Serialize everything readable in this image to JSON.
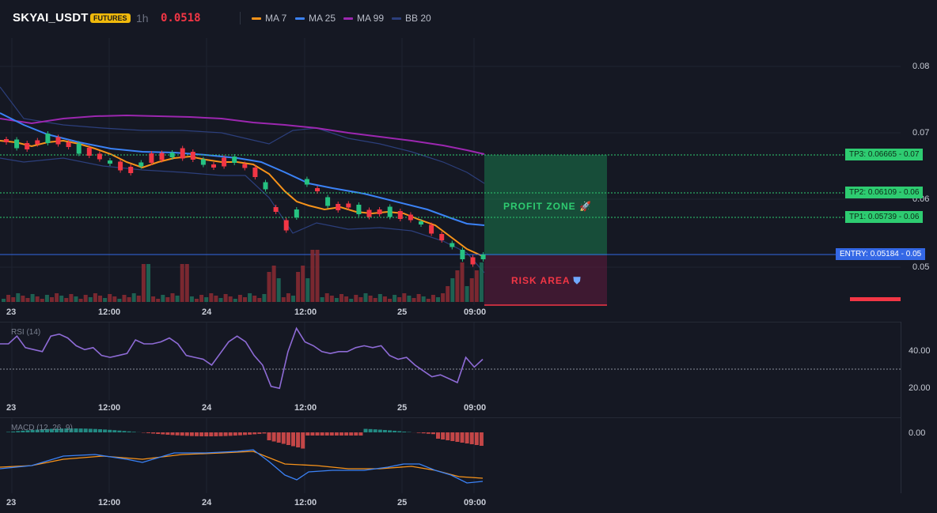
{
  "header": {
    "symbol": "SKYAI_USDT",
    "badge": "FUTURES",
    "timeframe": "1h",
    "last_price": "0.0518",
    "legend": [
      {
        "label": "MA 7",
        "color": "#f7931a"
      },
      {
        "label": "MA 25",
        "color": "#3b82f6"
      },
      {
        "label": "MA 99",
        "color": "#9c27b0"
      },
      {
        "label": "BB 20",
        "color": "#2c3f7c"
      }
    ]
  },
  "price_axis": {
    "ticks": [
      "0.08",
      "0.07",
      "0.06",
      "0.05"
    ]
  },
  "levels": {
    "tp3": "TP3: 0.06665",
    "tp3_axis": "0.07",
    "tp2": "TP2: 0.06109",
    "tp2_axis": "0.06",
    "tp1": "TP1: 0.05739",
    "tp1_axis": "0.06",
    "entry": "ENTRY: 0.05184",
    "entry_axis": "0.05"
  },
  "zones": {
    "profit": "PROFIT ZONE",
    "profit_icon": "rocket-icon",
    "risk": "RISK AREA",
    "risk_icon": "shield-icon"
  },
  "time_axis": {
    "labels": [
      "23",
      "12:00",
      "24",
      "12:00",
      "25",
      "09:00"
    ]
  },
  "rsi": {
    "label": "RSI (14)",
    "ticks": [
      "40.00",
      "20.00"
    ]
  },
  "macd": {
    "label": "MACD (12, 26, 9)",
    "ticks": [
      "0.00"
    ]
  },
  "colors": {
    "up": "#26c281",
    "down": "#f23645",
    "ma7": "#f7931a",
    "ma25": "#3b82f6",
    "ma99": "#9c27b0",
    "bb": "#2c3f7c",
    "rsi": "#8e6bd6",
    "macd": "#3b82f6",
    "signal": "#f7931a"
  },
  "chart_data": {
    "type": "candlestick",
    "rsi_values": [
      44,
      44,
      48,
      42,
      41,
      40,
      48,
      49,
      47,
      43,
      41,
      42,
      38,
      37,
      38,
      39,
      46,
      44,
      44,
      45,
      47,
      44,
      38,
      37,
      36,
      33,
      39,
      45,
      48,
      45,
      38,
      33,
      22,
      21,
      40,
      52,
      45,
      43,
      40,
      39,
      40,
      40,
      42,
      43,
      42,
      43,
      38,
      36,
      37,
      33,
      30,
      27,
      28,
      26,
      24,
      37,
      32,
      36
    ],
    "rsi_ylim": [
      15,
      55
    ]
  }
}
